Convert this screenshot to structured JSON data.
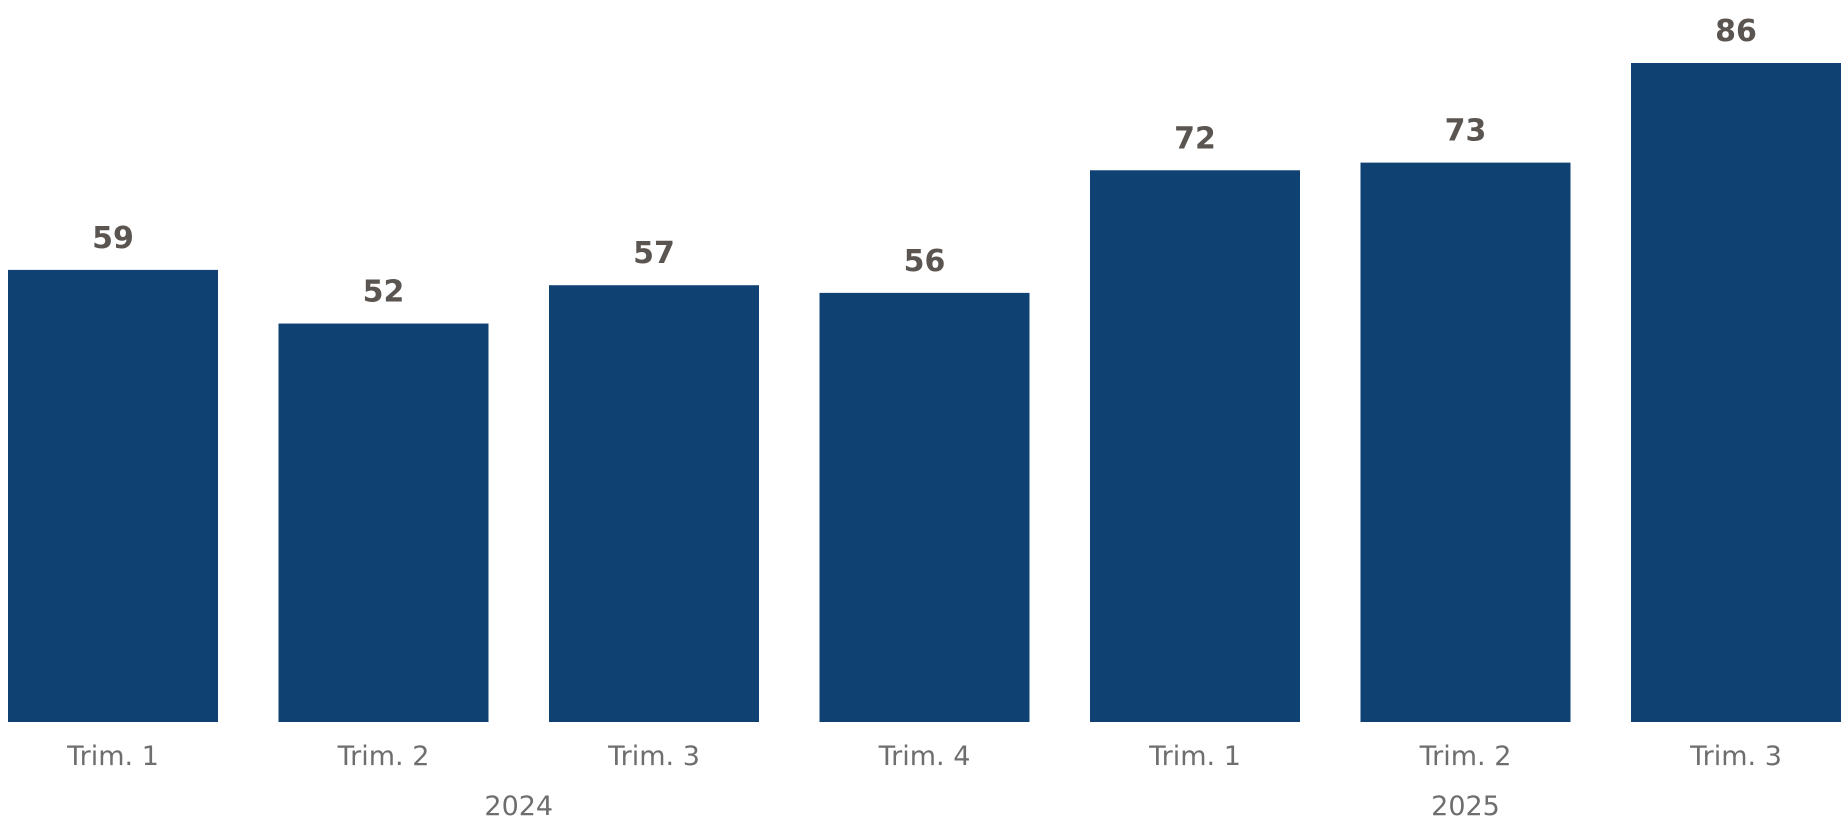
{
  "chart_data": {
    "type": "bar",
    "categories": [
      "Trim. 1",
      "Trim. 2",
      "Trim. 3",
      "Trim. 4",
      "Trim. 1",
      "Trim. 2",
      "Trim. 3"
    ],
    "groups": [
      {
        "label": "2024",
        "count": 4
      },
      {
        "label": "2025",
        "count": 3
      }
    ],
    "values": [
      59,
      52,
      57,
      56,
      72,
      73,
      86
    ],
    "data_labels": [
      "59",
      "52",
      "57",
      "56",
      "72",
      "73",
      "86"
    ],
    "title": "",
    "xlabel": "",
    "ylabel": "",
    "ylim": [
      0,
      86
    ],
    "grid": false,
    "legend": "none",
    "bar_color": "#0f4173"
  }
}
